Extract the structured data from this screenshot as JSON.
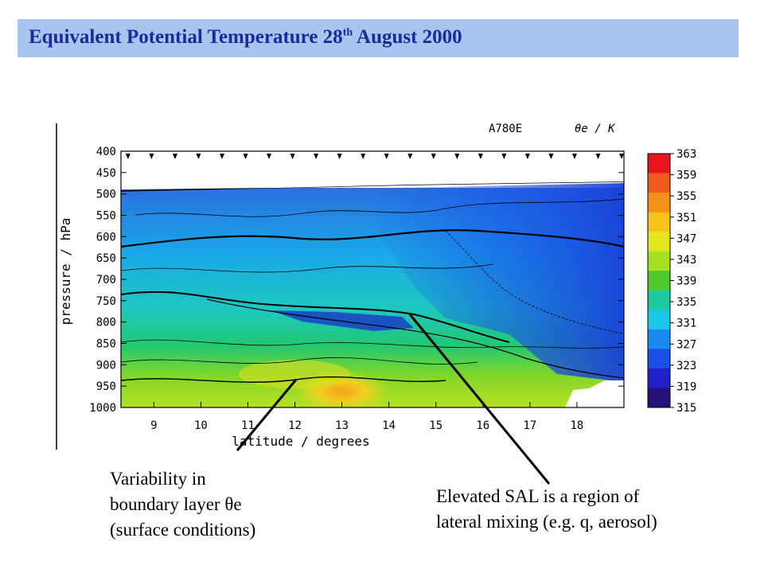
{
  "header": {
    "title_main": "Equivalent Potential Temperature 28",
    "title_sup": "th",
    "title_rest": " August 2000"
  },
  "chart_data": {
    "type": "heatmap",
    "title": "A780E θe / K",
    "flight_label": "A780E",
    "field_label": "θe / K",
    "xlabel": "latitude / degrees",
    "ylabel": "pressure / hPa",
    "x_ticks": [
      "9",
      "10",
      "11",
      "12",
      "13",
      "14",
      "15",
      "16",
      "17",
      "18"
    ],
    "y_ticks": [
      "400",
      "450",
      "500",
      "550",
      "600",
      "650",
      "700",
      "750",
      "800",
      "850",
      "900",
      "950",
      "1000"
    ],
    "xlim": [
      8.3,
      19.0
    ],
    "ylim": [
      1000,
      400
    ],
    "colorbar": {
      "ticks": [
        "363",
        "359",
        "355",
        "351",
        "347",
        "343",
        "339",
        "335",
        "331",
        "327",
        "323",
        "319",
        "315"
      ],
      "range": [
        315,
        363
      ],
      "colors": [
        "#e8161c",
        "#f05a1a",
        "#f5901a",
        "#f5c31c",
        "#e6e620",
        "#a6e020",
        "#4ec82a",
        "#1ec8a0",
        "#18c8e6",
        "#1a8cf0",
        "#1a50e8",
        "#2020c8",
        "#26107a"
      ]
    },
    "grid": false
  },
  "annotations": {
    "left_line1": "Variability in",
    "left_line2": "boundary layer θe",
    "left_line3": "(surface conditions)",
    "right_line1": "Elevated SAL is a region of",
    "right_line2": "lateral mixing (e.g. q, aerosol)"
  }
}
